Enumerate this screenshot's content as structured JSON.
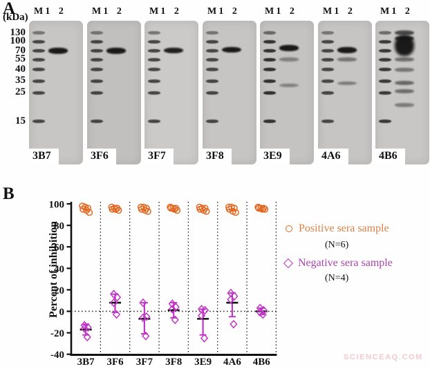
{
  "panel_a": {
    "label": "A",
    "kda_axis_label": "(kDa)",
    "ladder_values": [
      "130",
      "100",
      "70",
      "55",
      "40",
      "35",
      "25",
      "15"
    ],
    "lane_headers": [
      "M",
      "1",
      "2"
    ],
    "blots": [
      {
        "label": "3B7",
        "bg": "#c7c6c4",
        "lane1_bands": [
          {
            "kda": 70,
            "intensity": 1.0
          }
        ]
      },
      {
        "label": "3F6",
        "bg": "#c1c0be",
        "lane1_bands": [
          {
            "kda": 70,
            "intensity": 1.0
          }
        ]
      },
      {
        "label": "3F7",
        "bg": "#cbcac8",
        "lane1_bands": [
          {
            "kda": 72,
            "intensity": 0.95
          }
        ]
      },
      {
        "label": "3F8",
        "bg": "#c6c5c3",
        "lane1_bands": [
          {
            "kda": 73,
            "intensity": 1.0
          }
        ]
      },
      {
        "label": "3E9",
        "bg": "#c4c3c1",
        "ladder_boost": 1.15,
        "lane1_bands": [
          {
            "kda": 78,
            "intensity": 1.0
          },
          {
            "kda": 55,
            "intensity": 0.32
          },
          {
            "kda": 31,
            "intensity": 0.3
          }
        ]
      },
      {
        "label": "4A6",
        "bg": "#c6c5c3",
        "lane1_bands": [
          {
            "kda": 72,
            "intensity": 1.0
          },
          {
            "kda": 55,
            "intensity": 0.4
          },
          {
            "kda": 33,
            "intensity": 0.35
          }
        ]
      },
      {
        "label": "4B6",
        "bg": "#c8c7c5",
        "ladder_boost": 1.1,
        "lane1_bands": [
          {
            "kda": 130,
            "intensity": 0.7
          },
          {
            "kda": 110,
            "intensity": 0.8
          },
          {
            "kda": 85,
            "intensity": 1.0,
            "blob": true
          },
          {
            "kda": 55,
            "intensity": 0.45
          },
          {
            "kda": 40,
            "intensity": 0.4
          },
          {
            "kda": 33,
            "intensity": 0.5
          },
          {
            "kda": 26,
            "intensity": 0.45
          },
          {
            "kda": 20,
            "intensity": 0.35
          }
        ]
      }
    ]
  },
  "panel_b": {
    "label": "B"
  },
  "chart_data": {
    "type": "scatter",
    "title": "",
    "xlabel": "",
    "ylabel": "Percent of inhibition",
    "ylim": [
      -40,
      100
    ],
    "yticks": [
      100,
      80,
      60,
      40,
      20,
      0,
      -20,
      -40
    ],
    "categories": [
      "3B7",
      "3F6",
      "3F7",
      "3F8",
      "3E9",
      "4A6",
      "4B6"
    ],
    "zero_reference_line": 0,
    "grid": "dotted vertical separators between categories",
    "legend_position": "right",
    "series": [
      {
        "name": "Positive sera sample",
        "n": 6,
        "marker": "circle",
        "color": "#e2661f",
        "values": [
          [
            98,
            97,
            96,
            95,
            94,
            92
          ],
          [
            97,
            96,
            96,
            95,
            95,
            94
          ],
          [
            97,
            97,
            96,
            95,
            94,
            93
          ],
          [
            97,
            96,
            96,
            96,
            95,
            94
          ],
          [
            97,
            96,
            96,
            95,
            94,
            93
          ],
          [
            97,
            97,
            96,
            95,
            93,
            92
          ],
          [
            97,
            96,
            96,
            96,
            95,
            95
          ]
        ]
      },
      {
        "name": "Negative sera sample",
        "n": 4,
        "marker": "diamond",
        "color": "#c136c6",
        "values": [
          [
            -13,
            -15,
            -16,
            -24
          ],
          [
            16,
            13,
            8,
            -3
          ],
          [
            8,
            -5,
            -6,
            -23
          ],
          [
            7,
            4,
            2,
            -8
          ],
          [
            2,
            1,
            -4,
            -25
          ],
          [
            17,
            14,
            11,
            -12
          ],
          [
            3,
            1,
            -1,
            -3
          ]
        ],
        "mean": [
          -17,
          8,
          -7,
          1,
          -7,
          8,
          0
        ],
        "err_low": [
          -22,
          -1,
          -21,
          -6,
          -22,
          -5,
          -3
        ],
        "err_high": [
          -12,
          16,
          8,
          8,
          2,
          17,
          3
        ]
      }
    ]
  },
  "legend": {
    "positive_label": "Positive sera sample",
    "positive_n": "(N=6)",
    "positive_text_color": "#dc8145",
    "positive_marker_color": "#e2661f",
    "negative_label": "Negative sera sample",
    "negative_n": "(N=4)",
    "negative_text_color": "#a844ac",
    "negative_marker_color": "#c136c6"
  },
  "watermark": "SCIENCEAQ.COM"
}
